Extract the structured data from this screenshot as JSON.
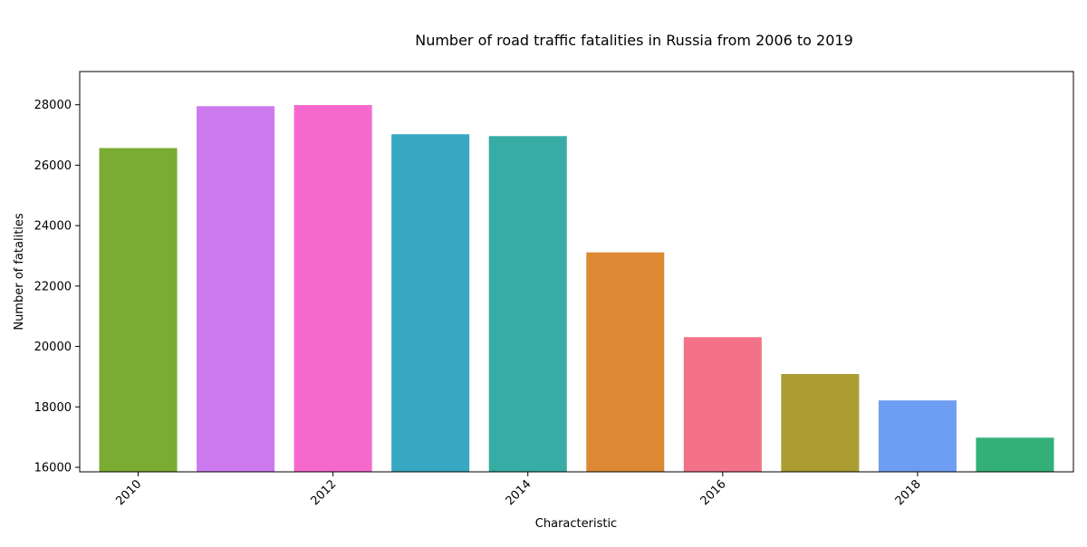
{
  "chart_data": {
    "type": "bar",
    "title": "Number of road traffic fatalities in Russia from 2006 to 2019",
    "xlabel": "Characteristic",
    "ylabel": "Number of fatalities",
    "x": [
      2010,
      2011,
      2012,
      2013,
      2014,
      2015,
      2016,
      2017,
      2018,
      2019
    ],
    "values": [
      26567,
      27953,
      27991,
      27025,
      26963,
      23114,
      20308,
      19088,
      18214,
      16981
    ],
    "colors": [
      "#7aab32",
      "#cc79f0",
      "#f569cd",
      "#38a8c2",
      "#36ac a4",
      "#dd8833",
      "#f47287",
      "#ab9d32",
      "#6d9ef3",
      "#32b077"
    ],
    "xticks": [
      "2010",
      "2012",
      "2014",
      "2016",
      "2018"
    ],
    "yticks": [
      "16000",
      "18000",
      "20000",
      "22000",
      "24000",
      "26000",
      "28000"
    ],
    "ylim": [
      15850,
      29100
    ],
    "xlim": [
      2009.4,
      2019.6
    ],
    "grid": false,
    "legend": "none"
  }
}
